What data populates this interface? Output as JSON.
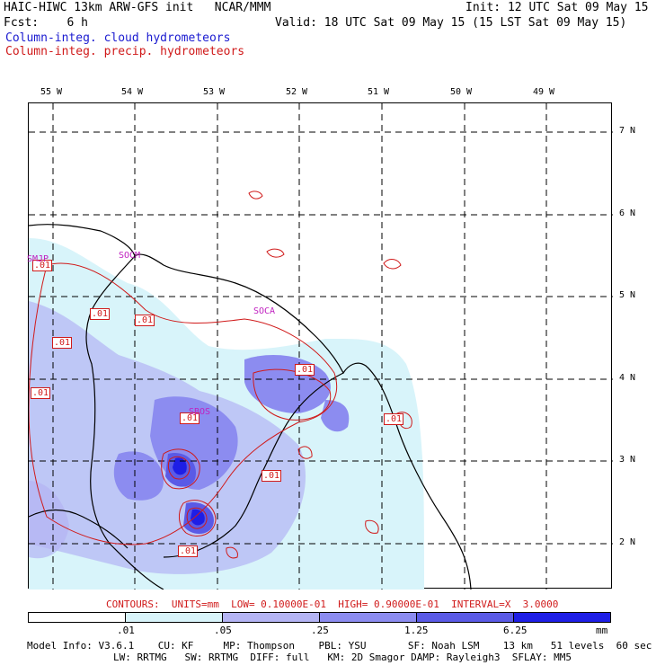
{
  "header": {
    "line1_left": "HAIC-HIWC 13km ARW-GFS init   NCAR/MMM",
    "line1_right": "Init: 12 UTC Sat 09 May 15",
    "line2_left": "Fcst:    6 h",
    "line2_right": "Valid: 18 UTC Sat 09 May 15 (15 LST Sat 09 May 15)",
    "legend_cloud": "Column-integ. cloud hydrometeors",
    "legend_precip": "Column-integ. precip. hydrometeors"
  },
  "map": {
    "lon_labels": [
      "55 W",
      "54 W",
      "53 W",
      "52 W",
      "51 W",
      "50 W",
      "49 W"
    ],
    "lat_labels": [
      "7 N",
      "6 N",
      "5 N",
      "4 N",
      "3 N",
      "2 N"
    ],
    "stations": [
      "SMJP",
      "SOCM",
      "SOCA",
      "SBOS"
    ],
    "contour_labels": [
      ".01",
      ".01",
      ".01",
      ".01",
      ".01",
      ".01",
      ".01",
      ".01",
      ".01"
    ]
  },
  "contour_info": "CONTOURS:  UNITS=mm  LOW= 0.10000E-01  HIGH= 0.90000E-01  INTERVAL=X  3.0000",
  "colorbar": {
    "labels": [
      ".01",
      ".05",
      ".25",
      "1.25",
      "6.25"
    ],
    "units": "mm",
    "colors": [
      "#ffffff",
      "#d8f4fa",
      "#b4b4f4",
      "#8c8cf0",
      "#5a5ae6",
      "#1e1ee6"
    ]
  },
  "model_info": {
    "line1": "Model Info: V3.6.1    CU: KF     MP: Thompson    PBL: YSU       SF: Noah LSM    13 km   51 levels  60 sec",
    "line2": "LW: RRTMG   SW: RRTMG  DIFF: full   KM: 2D Smagor DAMP: Rayleigh3  SFLAY: MM5"
  }
}
